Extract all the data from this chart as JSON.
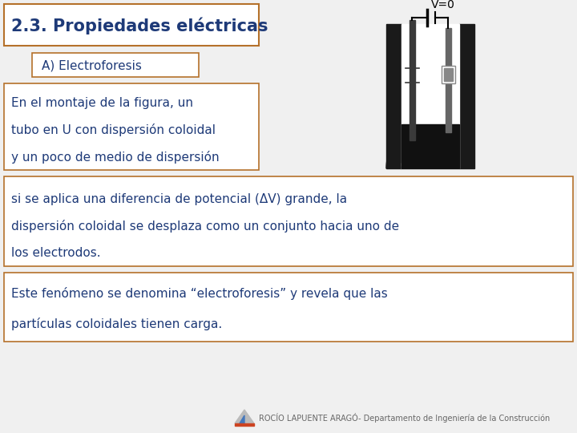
{
  "bg_color": "#f0f0f0",
  "title_text": "2.3. Propiedades eléctricas",
  "title_color": "#1e3a78",
  "title_box_color": "#b5712a",
  "subtitle_text": "A) Electroforesis",
  "subtitle_color": "#1e3a78",
  "subtitle_box_color": "#b5712a",
  "text1_lines": [
    "En el montaje de la figura, un",
    "tubo en U con dispersión coloidal",
    "y un poco de medio de dispersión"
  ],
  "text2_lines": [
    "si se aplica una diferencia de potencial (ΔV) grande, la",
    "dispersión coloidal se desplaza como un conjunto hacia uno de",
    "los electrodos."
  ],
  "text3_lines": [
    "Este fenómeno se denomina “electroforesis” y revela que las",
    "partículas coloidales tienen carga."
  ],
  "text_color": "#1e3a78",
  "box_edge_color": "#b5712a",
  "footer_text": "ROCÍO LAPUENTE ARAGÓ- Departamento de Ingeniería de la Construcción",
  "footer_color": "#666666",
  "v_label": "V=0",
  "tube_dark": "#1a1a1a",
  "electrode_color": "#888888",
  "liquid_color": "#111111"
}
